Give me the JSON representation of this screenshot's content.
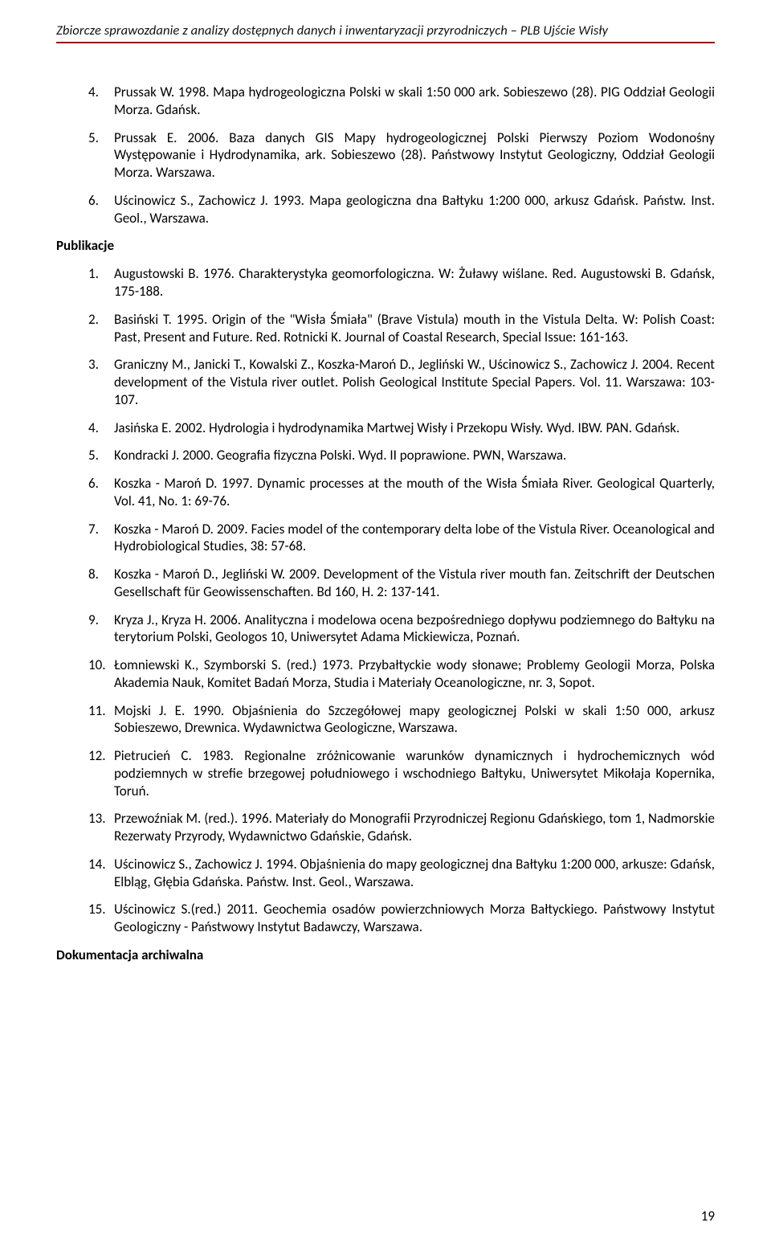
{
  "header": {
    "title": "Zbiorcze sprawozdanie z analizy dostępnych danych i inwentaryzacji przyrodniczych – PLB Ujście Wisły"
  },
  "list_top": [
    {
      "num": "4.",
      "text": "Prussak W. 1998. Mapa hydrogeologiczna Polski w skali 1:50 000 ark. Sobieszewo (28). PIG Oddział Geologii Morza. Gdańsk."
    },
    {
      "num": "5.",
      "text": "Prussak E. 2006. Baza danych GIS Mapy hydrogeologicznej Polski Pierwszy Poziom Wodonośny Występowanie i Hydrodynamika, ark. Sobieszewo (28). Państwowy Instytut Geologiczny, Oddział Geologii Morza. Warszawa."
    },
    {
      "num": "6.",
      "text": "Uścinowicz S., Zachowicz J. 1993. Mapa geologiczna dna Bałtyku 1:200 000, arkusz Gdańsk. Państw. Inst. Geol., Warszawa."
    }
  ],
  "section_pub": "Publikacje",
  "list_main": [
    {
      "num": "1.",
      "text": "Augustowski B. 1976. Charakterystyka geomorfologiczna. W: Żuławy wiślane. Red. Augustowski B. Gdańsk, 175-188."
    },
    {
      "num": "2.",
      "text": "Basiński T. 1995. Origin of the \"Wisła Śmiała\" (Brave Vistula) mouth in the Vistula Delta. W: Polish Coast: Past, Present and Future. Red. Rotnicki K. Journal of Coastal Research, Special Issue: 161-163."
    },
    {
      "num": "3.",
      "text": "Graniczny M., Janicki T., Kowalski Z., Koszka-Maroń D., Jegliński W., Uścinowicz S., Zachowicz J. 2004. Recent development of the Vistula river outlet. Polish Geological Institute Special Papers. Vol. 11. Warszawa: 103-107."
    },
    {
      "num": "4.",
      "text": "Jasińska E. 2002. Hydrologia i hydrodynamika Martwej Wisły i Przekopu Wisły. Wyd. IBW. PAN. Gdańsk."
    },
    {
      "num": "5.",
      "text": "Kondracki J. 2000. Geografia fizyczna Polski. Wyd. II poprawione. PWN, Warszawa."
    },
    {
      "num": "6.",
      "text": "Koszka - Maroń D. 1997. Dynamic processes at the mouth of the Wisła Śmiała River. Geological Quarterly, Vol. 41, No. 1: 69-76."
    },
    {
      "num": "7.",
      "text": "Koszka - Maroń D. 2009. Facies model of the contemporary delta lobe of the Vistula River. Oceanological and Hydrobiological Studies, 38: 57-68."
    },
    {
      "num": "8.",
      "text": "Koszka - Maroń D., Jegliński W. 2009. Development of the Vistula river mouth fan. Zeitschrift der Deutschen Gesellschaft für Geowissenschaften. Bd 160, H. 2: 137-141."
    },
    {
      "num": "9.",
      "text": "Kryza J., Kryza H. 2006. Analityczna i modelowa ocena bezpośredniego dopływu podziemnego do Bałtyku na terytorium Polski, Geologos 10, Uniwersytet Adama Mickiewicza, Poznań."
    },
    {
      "num": "10.",
      "text": "Łomniewski K., Szymborski S. (red.) 1973. Przybałtyckie wody słonawe; Problemy Geologii Morza, Polska Akademia Nauk, Komitet Badań Morza, Studia i Materiały Oceanologiczne, nr. 3, Sopot."
    },
    {
      "num": "11.",
      "text": "Mojski J. E. 1990. Objaśnienia do Szczegółowej mapy geologicznej Polski w skali 1:50 000, arkusz Sobieszewo, Drewnica. Wydawnictwa Geologiczne, Warszawa."
    },
    {
      "num": "12.",
      "text": "Pietrucień C. 1983. Regionalne zróżnicowanie warunków dynamicznych i hydrochemicznych wód podziemnych w strefie brzegowej południowego i wschodniego Bałtyku, Uniwersytet Mikołaja Kopernika, Toruń."
    },
    {
      "num": "13.",
      "text": "Przewoźniak M. (red.). 1996. Materiały do Monografii Przyrodniczej Regionu Gdańskiego, tom 1, Nadmorskie Rezerwaty Przyrody, Wydawnictwo Gdańskie, Gdańsk."
    },
    {
      "num": "14.",
      "text": "Uścinowicz S., Zachowicz J. 1994. Objaśnienia do mapy geologicznej dna Bałtyku 1:200 000, arkusze: Gdańsk, Elbląg, Głębia Gdańska. Państw. Inst. Geol., Warszawa."
    },
    {
      "num": "15.",
      "text": "Uścinowicz S.(red.) 2011. Geochemia osadów powierzchniowych Morza Bałtyckiego. Państwowy Instytut Geologiczny - Państwowy Instytut Badawczy, Warszawa."
    }
  ],
  "section_arch": "Dokumentacja archiwalna",
  "page_number": "19"
}
